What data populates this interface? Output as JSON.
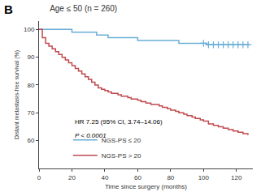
{
  "chart_data": {
    "type": "step",
    "title": "Age ≤ 50 (n = 260)",
    "xlabel": "Time since surgery (months)",
    "ylabel": "Distant metastasis-free survival (%)",
    "annotations": [
      "B",
      "HR 7.25 (95% CI, 3.74–14.06)",
      "P < 0.0001"
    ],
    "xlim": [
      0,
      130
    ],
    "ylim": [
      50,
      103
    ],
    "xticks": [
      0,
      20,
      40,
      60,
      80,
      100,
      120
    ],
    "yticks": [
      60,
      70,
      80,
      90,
      100
    ],
    "grid": false,
    "legend": "lower left",
    "series": [
      {
        "name": "NGS-PS ≤ 20",
        "color": "#6aaed6",
        "x": [
          0,
          5,
          10,
          15,
          20,
          25,
          30,
          35,
          40,
          42,
          44,
          50,
          55,
          60,
          65,
          70,
          75,
          80,
          85,
          90,
          95,
          100,
          102,
          105,
          108,
          110,
          112,
          115,
          118,
          120,
          122,
          124,
          126,
          128
        ],
        "values": [
          100,
          100,
          100,
          100,
          99,
          99,
          99,
          98,
          98,
          97,
          97,
          97,
          97,
          96,
          96,
          96,
          96,
          96,
          95,
          95,
          95,
          95,
          94.5,
          94.5,
          94.5,
          94.5,
          94.5,
          94.5,
          94.5,
          94.5,
          94.5,
          94.5,
          94.5,
          94.5
        ]
      },
      {
        "type": "scatter",
        "marker": "plus",
        "color": "#6aaed6",
        "x": [
          100,
          103,
          106,
          109,
          112,
          115,
          118,
          121,
          124,
          127
        ],
        "values": [
          95,
          94.5,
          94.5,
          94.5,
          94.5,
          94.5,
          94.5,
          94.5,
          94.5,
          94.5
        ]
      },
      {
        "name": "NGS-PS > 20",
        "color": "#c0494e",
        "x": [
          0,
          2,
          4,
          6,
          8,
          10,
          12,
          14,
          16,
          18,
          20,
          22,
          24,
          26,
          28,
          30,
          32,
          34,
          36,
          38,
          40,
          42,
          44,
          46,
          48,
          50,
          52,
          54,
          56,
          58,
          60,
          62,
          65,
          68,
          70,
          73,
          75,
          78,
          80,
          83,
          85,
          88,
          90,
          93,
          95,
          98,
          100,
          103,
          106,
          109,
          112,
          115,
          118,
          121,
          124,
          127
        ],
        "values": [
          100,
          97,
          95,
          94,
          93,
          92,
          91,
          90,
          89,
          88,
          87,
          86,
          85,
          84,
          83,
          82,
          81,
          80,
          79,
          78.5,
          78,
          77.5,
          77,
          77,
          76.5,
          76,
          76,
          75.5,
          75,
          75,
          74.5,
          74,
          73.5,
          73,
          73,
          72.5,
          72,
          71.5,
          71,
          70.5,
          70,
          69.5,
          69,
          68.5,
          68,
          67.5,
          67,
          66,
          65.5,
          65,
          64.5,
          64,
          63.5,
          63,
          62.5,
          62
        ]
      }
    ]
  }
}
